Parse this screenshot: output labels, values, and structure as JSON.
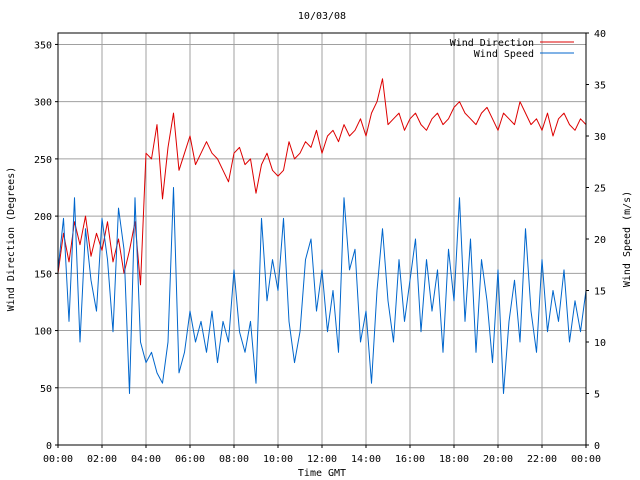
{
  "chart_data": {
    "type": "line",
    "title": "10/03/08",
    "xlabel": "Time GMT",
    "ylabel_left": "Wind Direction (Degrees)",
    "ylabel_right": "Wind Speed (m/s)",
    "grid": true,
    "legend_placement": "top-right",
    "x_ticks": [
      "00:00",
      "02:00",
      "04:00",
      "06:00",
      "08:00",
      "10:00",
      "12:00",
      "14:00",
      "16:00",
      "18:00",
      "20:00",
      "22:00",
      "00:00"
    ],
    "xlim_hours": [
      0,
      24
    ],
    "y_left_ticks": [
      0,
      50,
      100,
      150,
      200,
      250,
      300,
      350
    ],
    "ylim_left": [
      0,
      360
    ],
    "y_right_ticks": [
      0,
      5,
      10,
      15,
      20,
      25,
      30,
      35,
      40
    ],
    "ylim_right": [
      0,
      40
    ],
    "series": [
      {
        "name": "Wind Direction",
        "axis": "left",
        "color": "#dd0000",
        "x_hours": [
          0,
          0.25,
          0.5,
          0.75,
          1,
          1.25,
          1.5,
          1.75,
          2,
          2.25,
          2.5,
          2.75,
          3,
          3.25,
          3.5,
          3.75,
          4,
          4.25,
          4.5,
          4.75,
          5,
          5.25,
          5.5,
          5.75,
          6,
          6.25,
          6.5,
          6.75,
          7,
          7.25,
          7.5,
          7.75,
          8,
          8.25,
          8.5,
          8.75,
          9,
          9.25,
          9.5,
          9.75,
          10,
          10.25,
          10.5,
          10.75,
          11,
          11.25,
          11.5,
          11.75,
          12,
          12.25,
          12.5,
          12.75,
          13,
          13.25,
          13.5,
          13.75,
          14,
          14.25,
          14.5,
          14.75,
          15,
          15.25,
          15.5,
          15.75,
          16,
          16.25,
          16.5,
          16.75,
          17,
          17.25,
          17.5,
          17.75,
          18,
          18.25,
          18.5,
          18.75,
          19,
          19.25,
          19.5,
          19.75,
          20,
          20.25,
          20.5,
          20.75,
          21,
          21.25,
          21.5,
          21.75,
          22,
          22.25,
          22.5,
          22.75,
          23,
          23.25,
          23.5,
          23.75,
          24
        ],
        "values": [
          150,
          185,
          160,
          195,
          175,
          200,
          165,
          185,
          170,
          195,
          160,
          180,
          150,
          170,
          195,
          140,
          255,
          250,
          280,
          215,
          260,
          290,
          240,
          255,
          270,
          245,
          255,
          265,
          255,
          250,
          240,
          230,
          255,
          260,
          245,
          250,
          220,
          245,
          255,
          240,
          235,
          240,
          265,
          250,
          255,
          265,
          260,
          275,
          255,
          270,
          275,
          265,
          280,
          270,
          275,
          285,
          270,
          290,
          300,
          320,
          280,
          285,
          290,
          275,
          285,
          290,
          280,
          275,
          285,
          290,
          280,
          285,
          295,
          300,
          290,
          285,
          280,
          290,
          295,
          285,
          275,
          290,
          285,
          280,
          300,
          290,
          280,
          285,
          275,
          290,
          270,
          285,
          290,
          280,
          275,
          285,
          280
        ]
      },
      {
        "name": "Wind Speed",
        "axis": "right",
        "color": "#0066cc",
        "x_hours": [
          0,
          0.25,
          0.5,
          0.75,
          1,
          1.25,
          1.5,
          1.75,
          2,
          2.25,
          2.5,
          2.75,
          3,
          3.25,
          3.5,
          3.75,
          4,
          4.25,
          4.5,
          4.75,
          5,
          5.25,
          5.5,
          5.75,
          6,
          6.25,
          6.5,
          6.75,
          7,
          7.25,
          7.5,
          7.75,
          8,
          8.25,
          8.5,
          8.75,
          9,
          9.25,
          9.5,
          9.75,
          10,
          10.25,
          10.5,
          10.75,
          11,
          11.25,
          11.5,
          11.75,
          12,
          12.25,
          12.5,
          12.75,
          13,
          13.25,
          13.5,
          13.75,
          14,
          14.25,
          14.5,
          14.75,
          15,
          15.25,
          15.5,
          15.75,
          16,
          16.25,
          16.5,
          16.75,
          17,
          17.25,
          17.5,
          17.75,
          18,
          18.25,
          18.5,
          18.75,
          19,
          19.25,
          19.5,
          19.75,
          20,
          20.25,
          20.5,
          20.75,
          21,
          21.25,
          21.5,
          21.75,
          22,
          22.25,
          22.5,
          22.75,
          23,
          23.25,
          23.5,
          23.75,
          24
        ],
        "values": [
          17,
          22,
          12,
          24,
          10,
          21,
          16,
          13,
          22,
          18,
          11,
          23,
          19,
          5,
          24,
          10,
          8,
          9,
          7,
          6,
          10,
          25,
          7,
          9,
          13,
          10,
          12,
          9,
          13,
          8,
          12,
          10,
          17,
          11,
          9,
          12,
          6,
          22,
          14,
          18,
          15,
          22,
          12,
          8,
          11,
          18,
          20,
          13,
          17,
          11,
          15,
          9,
          24,
          17,
          19,
          10,
          13,
          6,
          15,
          21,
          14,
          10,
          18,
          12,
          16,
          20,
          11,
          18,
          13,
          17,
          9,
          19,
          14,
          24,
          12,
          20,
          9,
          18,
          14,
          8,
          17,
          5,
          12,
          16,
          10,
          21,
          13,
          9,
          18,
          11,
          15,
          12,
          17,
          10,
          14,
          11,
          15
        ]
      }
    ]
  }
}
